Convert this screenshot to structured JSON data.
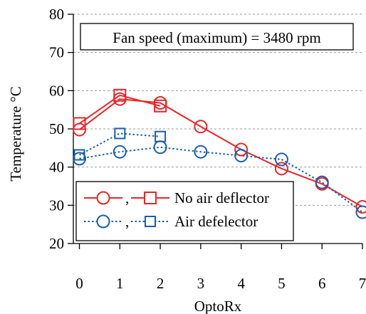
{
  "chart_data": {
    "type": "line",
    "title": "",
    "xlabel": "OptoRx",
    "ylabel": "Temperature °C",
    "xlim": [
      -0.15,
      7
    ],
    "ylim": [
      20,
      80
    ],
    "xticks": [
      0,
      1,
      2,
      3,
      4,
      5,
      6,
      7
    ],
    "xtick_labels": [
      "0",
      "1",
      "2",
      "3",
      "4",
      "5",
      "6",
      "7"
    ],
    "yticks": [
      20,
      30,
      40,
      50,
      60,
      70,
      80
    ],
    "ytick_labels": [
      "20",
      "30",
      "40",
      "50",
      "60",
      "70",
      "80"
    ],
    "grid": "horizontal dashed",
    "annotation": "Fan speed (maximum) = 3480 rpm",
    "legend": {
      "placement": "lower-left",
      "entries": [
        {
          "separator": ",",
          "label": "No air deflector"
        },
        {
          "separator": ",",
          "label": "Air defelector"
        }
      ]
    },
    "series": [
      {
        "group": 0,
        "marker": "circle",
        "style": "solid",
        "color": "#e8262a",
        "x": [
          0,
          1,
          2,
          3,
          4,
          5,
          6,
          7
        ],
        "y": [
          49.8,
          57.8,
          56.8,
          50.6,
          44.6,
          39.6,
          35.6,
          29.6
        ]
      },
      {
        "group": 0,
        "marker": "square",
        "style": "solid",
        "color": "#e8262a",
        "x": [
          0,
          1,
          2
        ],
        "y": [
          51.4,
          58.8,
          56.0
        ]
      },
      {
        "group": 1,
        "marker": "circle",
        "style": "dotted",
        "color": "#1a5ea8",
        "x": [
          0,
          1,
          2,
          3,
          4,
          5,
          6,
          7
        ],
        "y": [
          42.2,
          44.0,
          45.2,
          44.0,
          43.0,
          42.0,
          36.0,
          28.2
        ]
      },
      {
        "group": 1,
        "marker": "square",
        "style": "dotted",
        "color": "#1a5ea8",
        "x": [
          0,
          1,
          2
        ],
        "y": [
          43.2,
          48.8,
          48.0
        ]
      }
    ]
  }
}
